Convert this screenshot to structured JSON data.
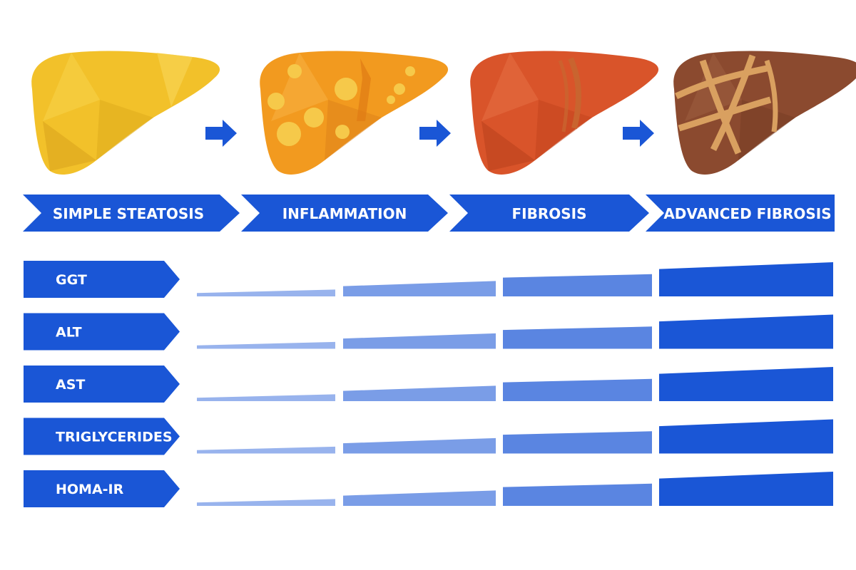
{
  "colors": {
    "chevron_blue": "#1a56d6",
    "bar_fill": "#1a56d6",
    "stage_liver_colors": [
      "#f2c12a",
      "#f29a1f",
      "#d9542a",
      "#8b4a2f"
    ],
    "nodule_color": "#f6c94a",
    "fibrosis_band_color": "#d9a060"
  },
  "stages": [
    {
      "label": "SIMPLE STEATOSIS",
      "liver_icon": "liver-icon-yellow"
    },
    {
      "label": "INFLAMMATION",
      "liver_icon": "liver-icon-orange-with-nodules"
    },
    {
      "label": "FIBROSIS",
      "liver_icon": "liver-icon-red-with-bands"
    },
    {
      "label": "ADVANCED FIBROSIS",
      "liver_icon": "liver-icon-brown-with-bands"
    }
  ],
  "progress_arrow_icon": "right-arrow-icon",
  "markers": [
    {
      "label": "GGT"
    },
    {
      "label": "ALT"
    },
    {
      "label": "AST"
    },
    {
      "label": "TRIGLYCERIDES"
    },
    {
      "label": "HOMA-IR"
    }
  ],
  "bar_segments": [
    {
      "stage": "SIMPLE STEATOSIS",
      "relative_level_start": 0.1,
      "relative_level_end": 0.2,
      "opacity": 0.45
    },
    {
      "stage": "INFLAMMATION",
      "relative_level_start": 0.3,
      "relative_level_end": 0.45,
      "opacity": 0.58
    },
    {
      "stage": "FIBROSIS",
      "relative_level_start": 0.55,
      "relative_level_end": 0.65,
      "opacity": 0.72
    },
    {
      "stage": "ADVANCED FIBROSIS",
      "relative_level_start": 0.8,
      "relative_level_end": 1.0,
      "opacity": 1.0
    }
  ]
}
